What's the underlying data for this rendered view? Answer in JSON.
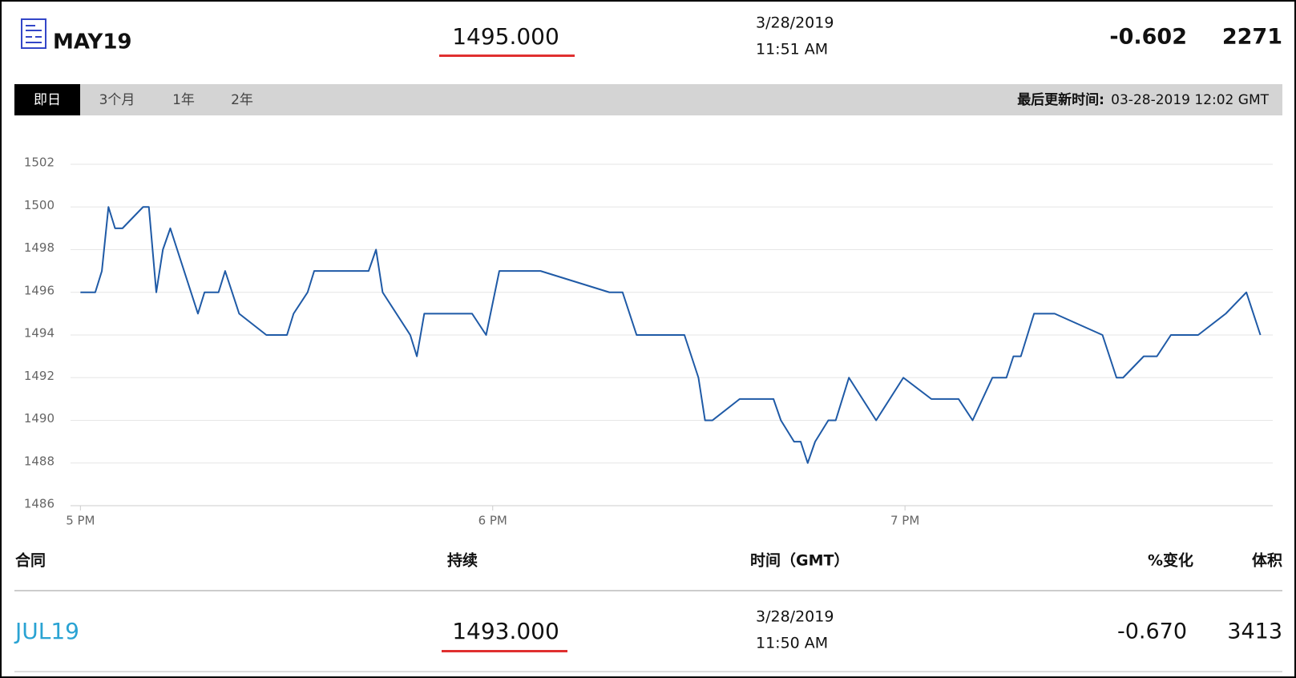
{
  "header": {
    "contract": "MAY19",
    "price": "1495.000",
    "date": "3/28/2019",
    "time": "11:51 AM",
    "change": "-0.602",
    "volume": "2271"
  },
  "tabs": [
    "即日",
    "3个月",
    "1年",
    "2年"
  ],
  "last_updated": {
    "label": "最后更新时间:",
    "value": "03-28-2019 12:02 GMT"
  },
  "chart_data": {
    "type": "line",
    "x": [
      17.0,
      17.036,
      17.052,
      17.068,
      17.084,
      17.102,
      17.152,
      17.166,
      17.184,
      17.2,
      17.218,
      17.285,
      17.301,
      17.335,
      17.351,
      17.385,
      17.451,
      17.501,
      17.517,
      17.551,
      17.567,
      17.699,
      17.717,
      17.733,
      17.8,
      17.816,
      17.834,
      17.95,
      17.984,
      18.016,
      18.116,
      18.283,
      18.315,
      18.349,
      18.465,
      18.499,
      18.515,
      18.533,
      18.599,
      18.681,
      18.699,
      18.731,
      18.747,
      18.764,
      18.782,
      18.814,
      18.832,
      18.864,
      18.93,
      18.996,
      19.064,
      19.13,
      19.164,
      19.212,
      19.246,
      19.263,
      19.281,
      19.313,
      19.363,
      19.479,
      19.513,
      19.529,
      19.579,
      19.611,
      19.645,
      19.711,
      19.778,
      19.828,
      19.862
    ],
    "series": [
      {
        "name": "MAY19",
        "color": "#1f5aa6",
        "values": [
          1496,
          1496,
          1497,
          1500,
          1499,
          1499,
          1500,
          1500,
          1496,
          1498,
          1499,
          1495,
          1496,
          1496,
          1497,
          1495,
          1494,
          1494,
          1495,
          1496,
          1497,
          1497,
          1498,
          1496,
          1494,
          1493,
          1495,
          1495,
          1494,
          1497,
          1497,
          1496,
          1496,
          1494,
          1494,
          1492,
          1490,
          1490,
          1491,
          1491,
          1490,
          1489,
          1489,
          1488,
          1489,
          1490,
          1490,
          1492,
          1490,
          1492,
          1491,
          1491,
          1490,
          1492,
          1492,
          1493,
          1493,
          1495,
          1495,
          1494,
          1492,
          1492,
          1493,
          1493,
          1494,
          1494,
          1495,
          1496,
          1494
        ]
      }
    ],
    "xlim": [
      16.976,
      19.892
    ],
    "xticks": [
      {
        "value": 17,
        "label": "5 PM"
      },
      {
        "value": 18,
        "label": "6 PM"
      },
      {
        "value": 19,
        "label": "7 PM"
      }
    ],
    "ylim": [
      1486,
      1502
    ],
    "yticks": [
      1486,
      1488,
      1490,
      1492,
      1494,
      1496,
      1498,
      1500,
      1502
    ],
    "grid": true
  },
  "table": {
    "headers": [
      "合同",
      "持续",
      "时间（GMT）",
      "%变化",
      "体积"
    ],
    "rows": [
      [
        "JUL19",
        "1493.000",
        "3/28/2019",
        "11:50 AM",
        "-0.670",
        "3413"
      ]
    ]
  }
}
